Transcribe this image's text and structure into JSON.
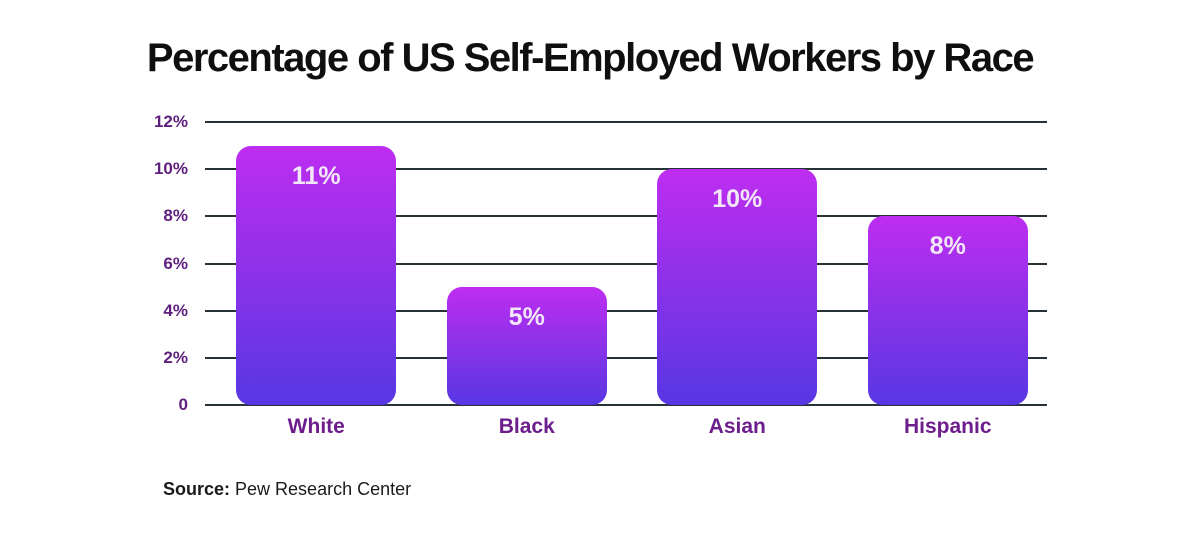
{
  "title": "Percentage of US Self-Employed Workers by Race",
  "source": {
    "prefix": "Source:",
    "text": " Pew Research Center"
  },
  "chart_data": {
    "type": "bar",
    "title": "Percentage of US Self-Employed Workers by Race",
    "categories": [
      "White",
      "Black",
      "Asian",
      "Hispanic"
    ],
    "values": [
      11,
      5,
      10,
      8
    ],
    "bar_labels": [
      "11%",
      "5%",
      "10%",
      "8%"
    ],
    "xlabel": "",
    "ylabel": "",
    "ylim": [
      0,
      12
    ],
    "yticks": [
      12,
      10,
      8,
      6,
      4,
      2,
      0
    ],
    "ytick_labels": [
      "12%",
      "10%",
      "8%",
      "6%",
      "4%",
      "2%",
      "0"
    ],
    "grid": true,
    "legend": false,
    "source_note": "Source: Pew Research Center",
    "colors": {
      "background": "#ffffff",
      "title": "#0f0f0f",
      "bar_gradient_top": "#be2df0",
      "bar_gradient_bottom": "#5737e2",
      "bar_label": "#f2e7f7",
      "gridline": "#263238",
      "ytick_label": "#5e1f7d",
      "category_label": "#6d1d8c"
    }
  }
}
